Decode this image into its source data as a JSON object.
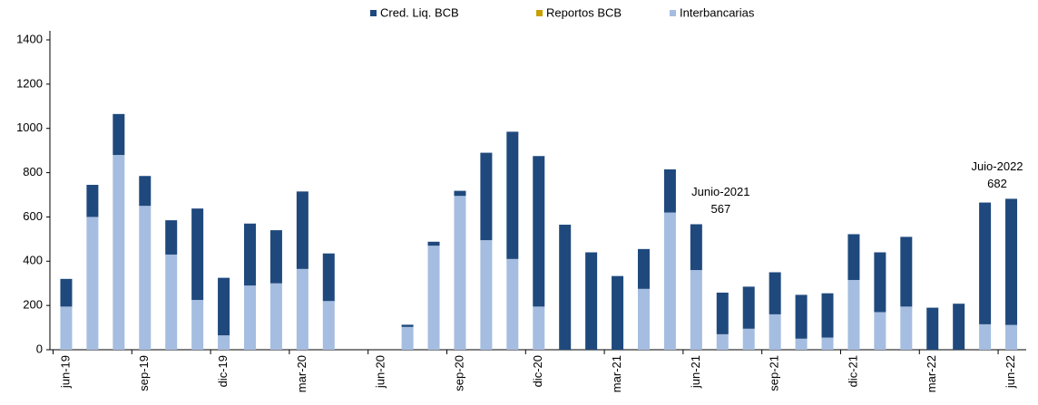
{
  "chart_data": {
    "type": "stacked_bar",
    "categories": [
      "jun-19",
      null,
      null,
      "sep-19",
      null,
      null,
      "dic-19",
      null,
      null,
      "mar-20",
      null,
      null,
      "jun-20",
      null,
      null,
      "sep-20",
      null,
      null,
      "dic-20",
      null,
      null,
      "mar-21",
      null,
      null,
      "jun-21",
      null,
      null,
      "sep-21",
      null,
      null,
      "dic-21",
      null,
      null,
      "mar-22",
      null,
      null,
      "jun-22"
    ],
    "series": [
      {
        "name": "Interbancarias",
        "color": "#a5bde0",
        "values": [
          195,
          600,
          880,
          650,
          430,
          225,
          65,
          290,
          300,
          365,
          220,
          0,
          0,
          103,
          470,
          695,
          495,
          410,
          195,
          0,
          0,
          0,
          275,
          620,
          360,
          70,
          95,
          160,
          50,
          55,
          315,
          170,
          195,
          0,
          0,
          115,
          112
        ]
      },
      {
        "name": "Reportos BCB",
        "color": "#c9a000",
        "values": [
          0,
          0,
          0,
          0,
          0,
          0,
          0,
          0,
          0,
          0,
          0,
          0,
          0,
          0,
          0,
          0,
          0,
          0,
          0,
          0,
          0,
          0,
          0,
          0,
          0,
          0,
          0,
          0,
          0,
          0,
          0,
          0,
          0,
          0,
          0,
          0,
          0
        ]
      },
      {
        "name": "Cred. Liq. BCB",
        "color": "#1f497d",
        "values": [
          125,
          145,
          185,
          135,
          155,
          413,
          260,
          280,
          240,
          350,
          215,
          0,
          0,
          10,
          18,
          23,
          395,
          575,
          680,
          565,
          440,
          333,
          180,
          195,
          207,
          188,
          190,
          190,
          198,
          200,
          207,
          270,
          315,
          190,
          208,
          550,
          570
        ]
      }
    ],
    "legend_order": [
      "Cred. Liq. BCB",
      "Reportos BCB",
      "Interbancarias"
    ],
    "annotations": [
      {
        "text": "Junio-2021",
        "value": 567,
        "category": "jun-21"
      },
      {
        "text": "Juio-2022",
        "value": 682,
        "category": "jun-22"
      }
    ],
    "ylim": [
      0,
      1400
    ],
    "yticks": [
      0,
      200,
      400,
      600,
      800,
      1000,
      1200,
      1400
    ],
    "grid": false
  }
}
